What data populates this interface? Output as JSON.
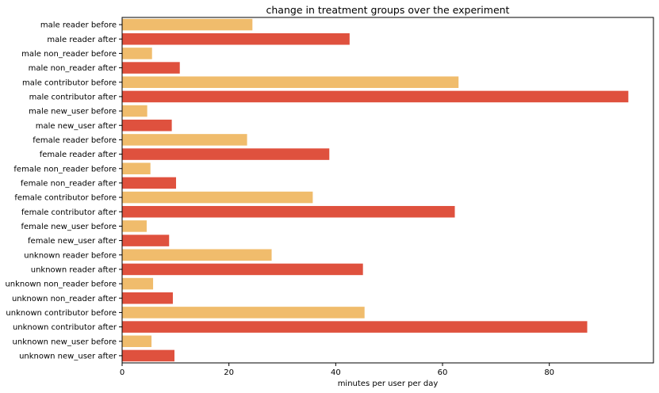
{
  "chart_data": {
    "type": "bar",
    "orientation": "horizontal",
    "title": "change in treatment groups over the experiment",
    "xlabel": "minutes per user per day",
    "ylabel": "",
    "xlim": [
      0,
      99.5
    ],
    "xticks": [
      0,
      20,
      40,
      60,
      80
    ],
    "grid": false,
    "colors": {
      "before": "#f0bc6c",
      "after": "#df513e"
    },
    "categories": [
      "male reader before",
      "male reader after",
      "male non_reader before",
      "male non_reader after",
      "male contributor before",
      "male contributor after",
      "male new_user before",
      "male new_user after",
      "female reader before",
      "female reader after",
      "female non_reader before",
      "female non_reader after",
      "female contributor before",
      "female contributor after",
      "female new_user before",
      "female new_user after",
      "unknown reader before",
      "unknown reader after",
      "unknown non_reader before",
      "unknown non_reader after",
      "unknown contributor before",
      "unknown contributor after",
      "unknown new_user before",
      "unknown new_user after"
    ],
    "values": [
      24.4,
      42.6,
      5.6,
      10.8,
      63.0,
      94.8,
      4.7,
      9.3,
      23.4,
      38.8,
      5.3,
      10.1,
      35.7,
      62.3,
      4.6,
      8.8,
      28.0,
      45.1,
      5.8,
      9.5,
      45.4,
      87.1,
      5.5,
      9.8
    ]
  }
}
